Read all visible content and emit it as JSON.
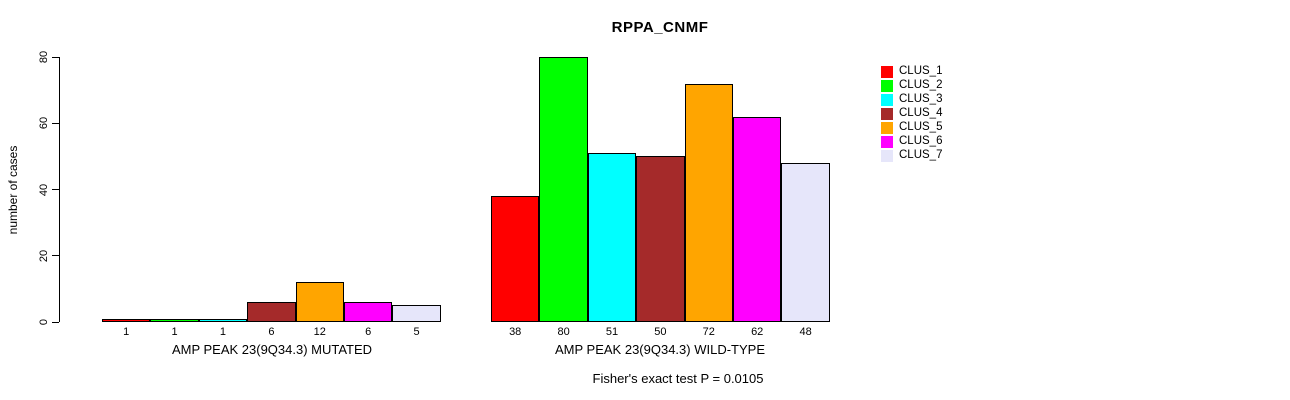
{
  "chart_data": {
    "type": "bar",
    "title": "RPPA_CNMF",
    "ylabel": "number of cases",
    "xlabel": "",
    "ylim": [
      0,
      80
    ],
    "yticks": [
      0,
      20,
      40,
      60,
      80
    ],
    "grid": false,
    "legend_position": "right",
    "annotation": "Fisher's exact test P = 0.0105",
    "series": [
      {
        "name": "CLUS_1",
        "color": "#FF0000"
      },
      {
        "name": "CLUS_2",
        "color": "#00FF00"
      },
      {
        "name": "CLUS_3",
        "color": "#00FFFF"
      },
      {
        "name": "CLUS_4",
        "color": "#A52A2A"
      },
      {
        "name": "CLUS_5",
        "color": "#FFA500"
      },
      {
        "name": "CLUS_6",
        "color": "#FF00FF"
      },
      {
        "name": "CLUS_7",
        "color": "#E6E6FA"
      }
    ],
    "groups": [
      {
        "label": "AMP PEAK 23(9Q34.3) MUTATED",
        "values": [
          1,
          1,
          1,
          6,
          12,
          6,
          5
        ]
      },
      {
        "label": "AMP PEAK 23(9Q34.3) WILD-TYPE",
        "values": [
          38,
          80,
          51,
          50,
          72,
          62,
          48
        ]
      }
    ]
  },
  "colors": {
    "background": "#FFFFFF",
    "axis": "#000000",
    "bar_border": "#000000",
    "text": "#000000"
  }
}
